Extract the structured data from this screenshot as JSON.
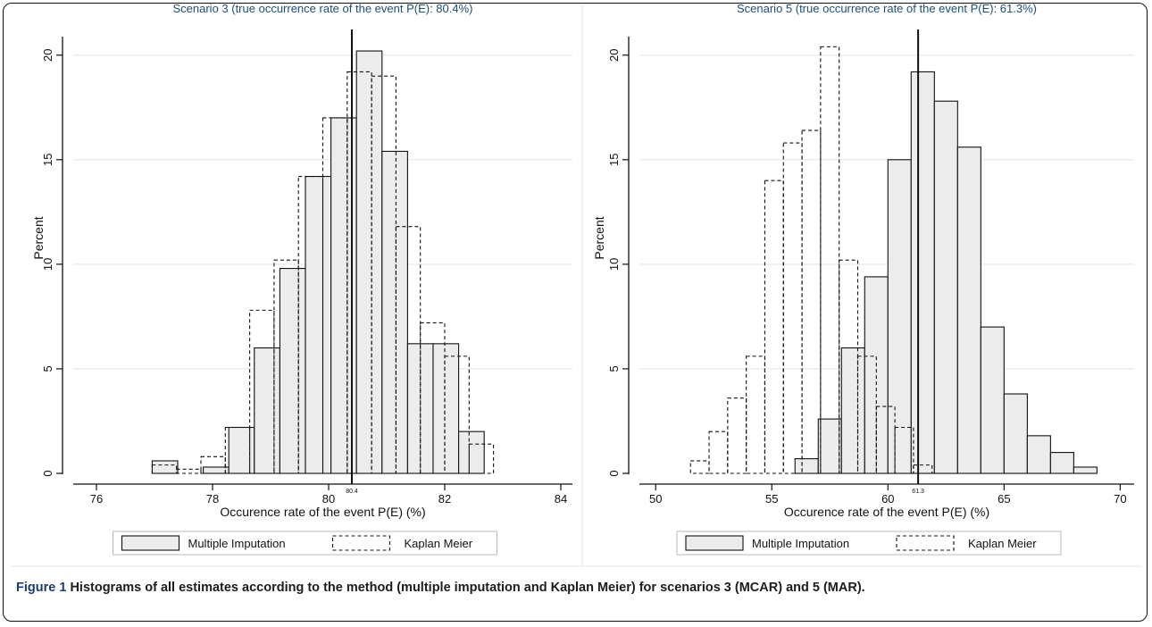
{
  "figure": {
    "caption_label": "Figure 1",
    "caption_text": "Histograms of all estimates according to the method (multiple imputation and Kaplan Meier) for scenarios 3 (MCAR) and 5 (MAR)."
  },
  "colors": {
    "mi_fill": "#ececec",
    "bar_stroke": "#111111",
    "grid": "#e8eef0",
    "title": "#1e4e79",
    "axis": "#111111"
  },
  "chart_data": [
    {
      "type": "bar",
      "title": "Scenario 3 (true occurrence rate of the event P(E): 80.4%)",
      "xlabel": "Occurence rate of the event P(E) (%)",
      "ylabel": "Percent",
      "xlim": [
        75.6,
        84.2
      ],
      "ylim": [
        0,
        20.8
      ],
      "xticks": [
        76,
        78,
        80,
        82,
        84
      ],
      "yticks": [
        0,
        5,
        10,
        15,
        20
      ],
      "grid": true,
      "reference_line": {
        "x": 80.4,
        "label": "80.4"
      },
      "legend": {
        "position": "bottom",
        "entries": [
          "Multiple Imputation",
          "Kaplan Meier"
        ]
      },
      "series": [
        {
          "name": "Multiple Imputation",
          "style": "solid-filled",
          "bin_width": 0.44,
          "bins": [
            {
              "x0": 76.96,
              "value": 0.6
            },
            {
              "x0": 77.4,
              "value": 0.0
            },
            {
              "x0": 77.84,
              "value": 0.3
            },
            {
              "x0": 78.28,
              "value": 2.2
            },
            {
              "x0": 78.72,
              "value": 6.0
            },
            {
              "x0": 79.16,
              "value": 9.8
            },
            {
              "x0": 79.6,
              "value": 14.2
            },
            {
              "x0": 80.04,
              "value": 17.0
            },
            {
              "x0": 80.48,
              "value": 20.2
            },
            {
              "x0": 80.92,
              "value": 15.4
            },
            {
              "x0": 81.36,
              "value": 6.2
            },
            {
              "x0": 81.8,
              "value": 6.2
            },
            {
              "x0": 82.24,
              "value": 2.0
            }
          ]
        },
        {
          "name": "Kaplan Meier",
          "style": "dashed-outline",
          "bin_width": 0.42,
          "bins": [
            {
              "x0": 76.96,
              "value": 0.4
            },
            {
              "x0": 77.38,
              "value": 0.2
            },
            {
              "x0": 77.8,
              "value": 0.8
            },
            {
              "x0": 78.22,
              "value": 2.2
            },
            {
              "x0": 78.64,
              "value": 7.8
            },
            {
              "x0": 79.06,
              "value": 10.2
            },
            {
              "x0": 79.48,
              "value": 14.2
            },
            {
              "x0": 79.9,
              "value": 17.0
            },
            {
              "x0": 80.32,
              "value": 19.2
            },
            {
              "x0": 80.74,
              "value": 19.0
            },
            {
              "x0": 81.16,
              "value": 11.8
            },
            {
              "x0": 81.58,
              "value": 7.2
            },
            {
              "x0": 82.0,
              "value": 5.6
            },
            {
              "x0": 82.42,
              "value": 1.4
            }
          ]
        }
      ]
    },
    {
      "type": "bar",
      "title": "Scenario 5 (true occurrence rate of the event P(E): 61.3%)",
      "xlabel": "Occurence rate of the event P(E) (%)",
      "ylabel": "Percent",
      "xlim": [
        49.3,
        70.6
      ],
      "ylim": [
        0,
        20.8
      ],
      "xticks": [
        50,
        55,
        60,
        65,
        70
      ],
      "yticks": [
        0,
        5,
        10,
        15,
        20
      ],
      "grid": true,
      "reference_line": {
        "x": 61.3,
        "label": "61.3"
      },
      "legend": {
        "position": "bottom",
        "entries": [
          "Multiple Imputation",
          "Kaplan Meier"
        ]
      },
      "series": [
        {
          "name": "Multiple Imputation",
          "style": "solid-filled",
          "bin_width": 1.0,
          "bins": [
            {
              "x0": 56.0,
              "value": 0.7
            },
            {
              "x0": 57.0,
              "value": 2.6
            },
            {
              "x0": 58.0,
              "value": 6.0
            },
            {
              "x0": 59.0,
              "value": 9.4
            },
            {
              "x0": 60.0,
              "value": 15.0
            },
            {
              "x0": 61.0,
              "value": 19.2
            },
            {
              "x0": 62.0,
              "value": 17.8
            },
            {
              "x0": 63.0,
              "value": 15.6
            },
            {
              "x0": 64.0,
              "value": 7.0
            },
            {
              "x0": 65.0,
              "value": 3.8
            },
            {
              "x0": 66.0,
              "value": 1.8
            },
            {
              "x0": 67.0,
              "value": 1.0
            },
            {
              "x0": 68.0,
              "value": 0.3
            }
          ]
        },
        {
          "name": "Kaplan Meier",
          "style": "dashed-outline",
          "bin_width": 0.8,
          "bins": [
            {
              "x0": 51.5,
              "value": 0.6
            },
            {
              "x0": 52.3,
              "value": 2.0
            },
            {
              "x0": 53.1,
              "value": 3.6
            },
            {
              "x0": 53.9,
              "value": 5.6
            },
            {
              "x0": 54.7,
              "value": 14.0
            },
            {
              "x0": 55.5,
              "value": 15.8
            },
            {
              "x0": 56.3,
              "value": 16.4
            },
            {
              "x0": 57.1,
              "value": 20.4
            },
            {
              "x0": 57.9,
              "value": 10.2
            },
            {
              "x0": 58.7,
              "value": 5.6
            },
            {
              "x0": 59.5,
              "value": 3.2
            },
            {
              "x0": 60.3,
              "value": 2.2
            },
            {
              "x0": 61.1,
              "value": 0.4
            }
          ]
        }
      ]
    }
  ]
}
